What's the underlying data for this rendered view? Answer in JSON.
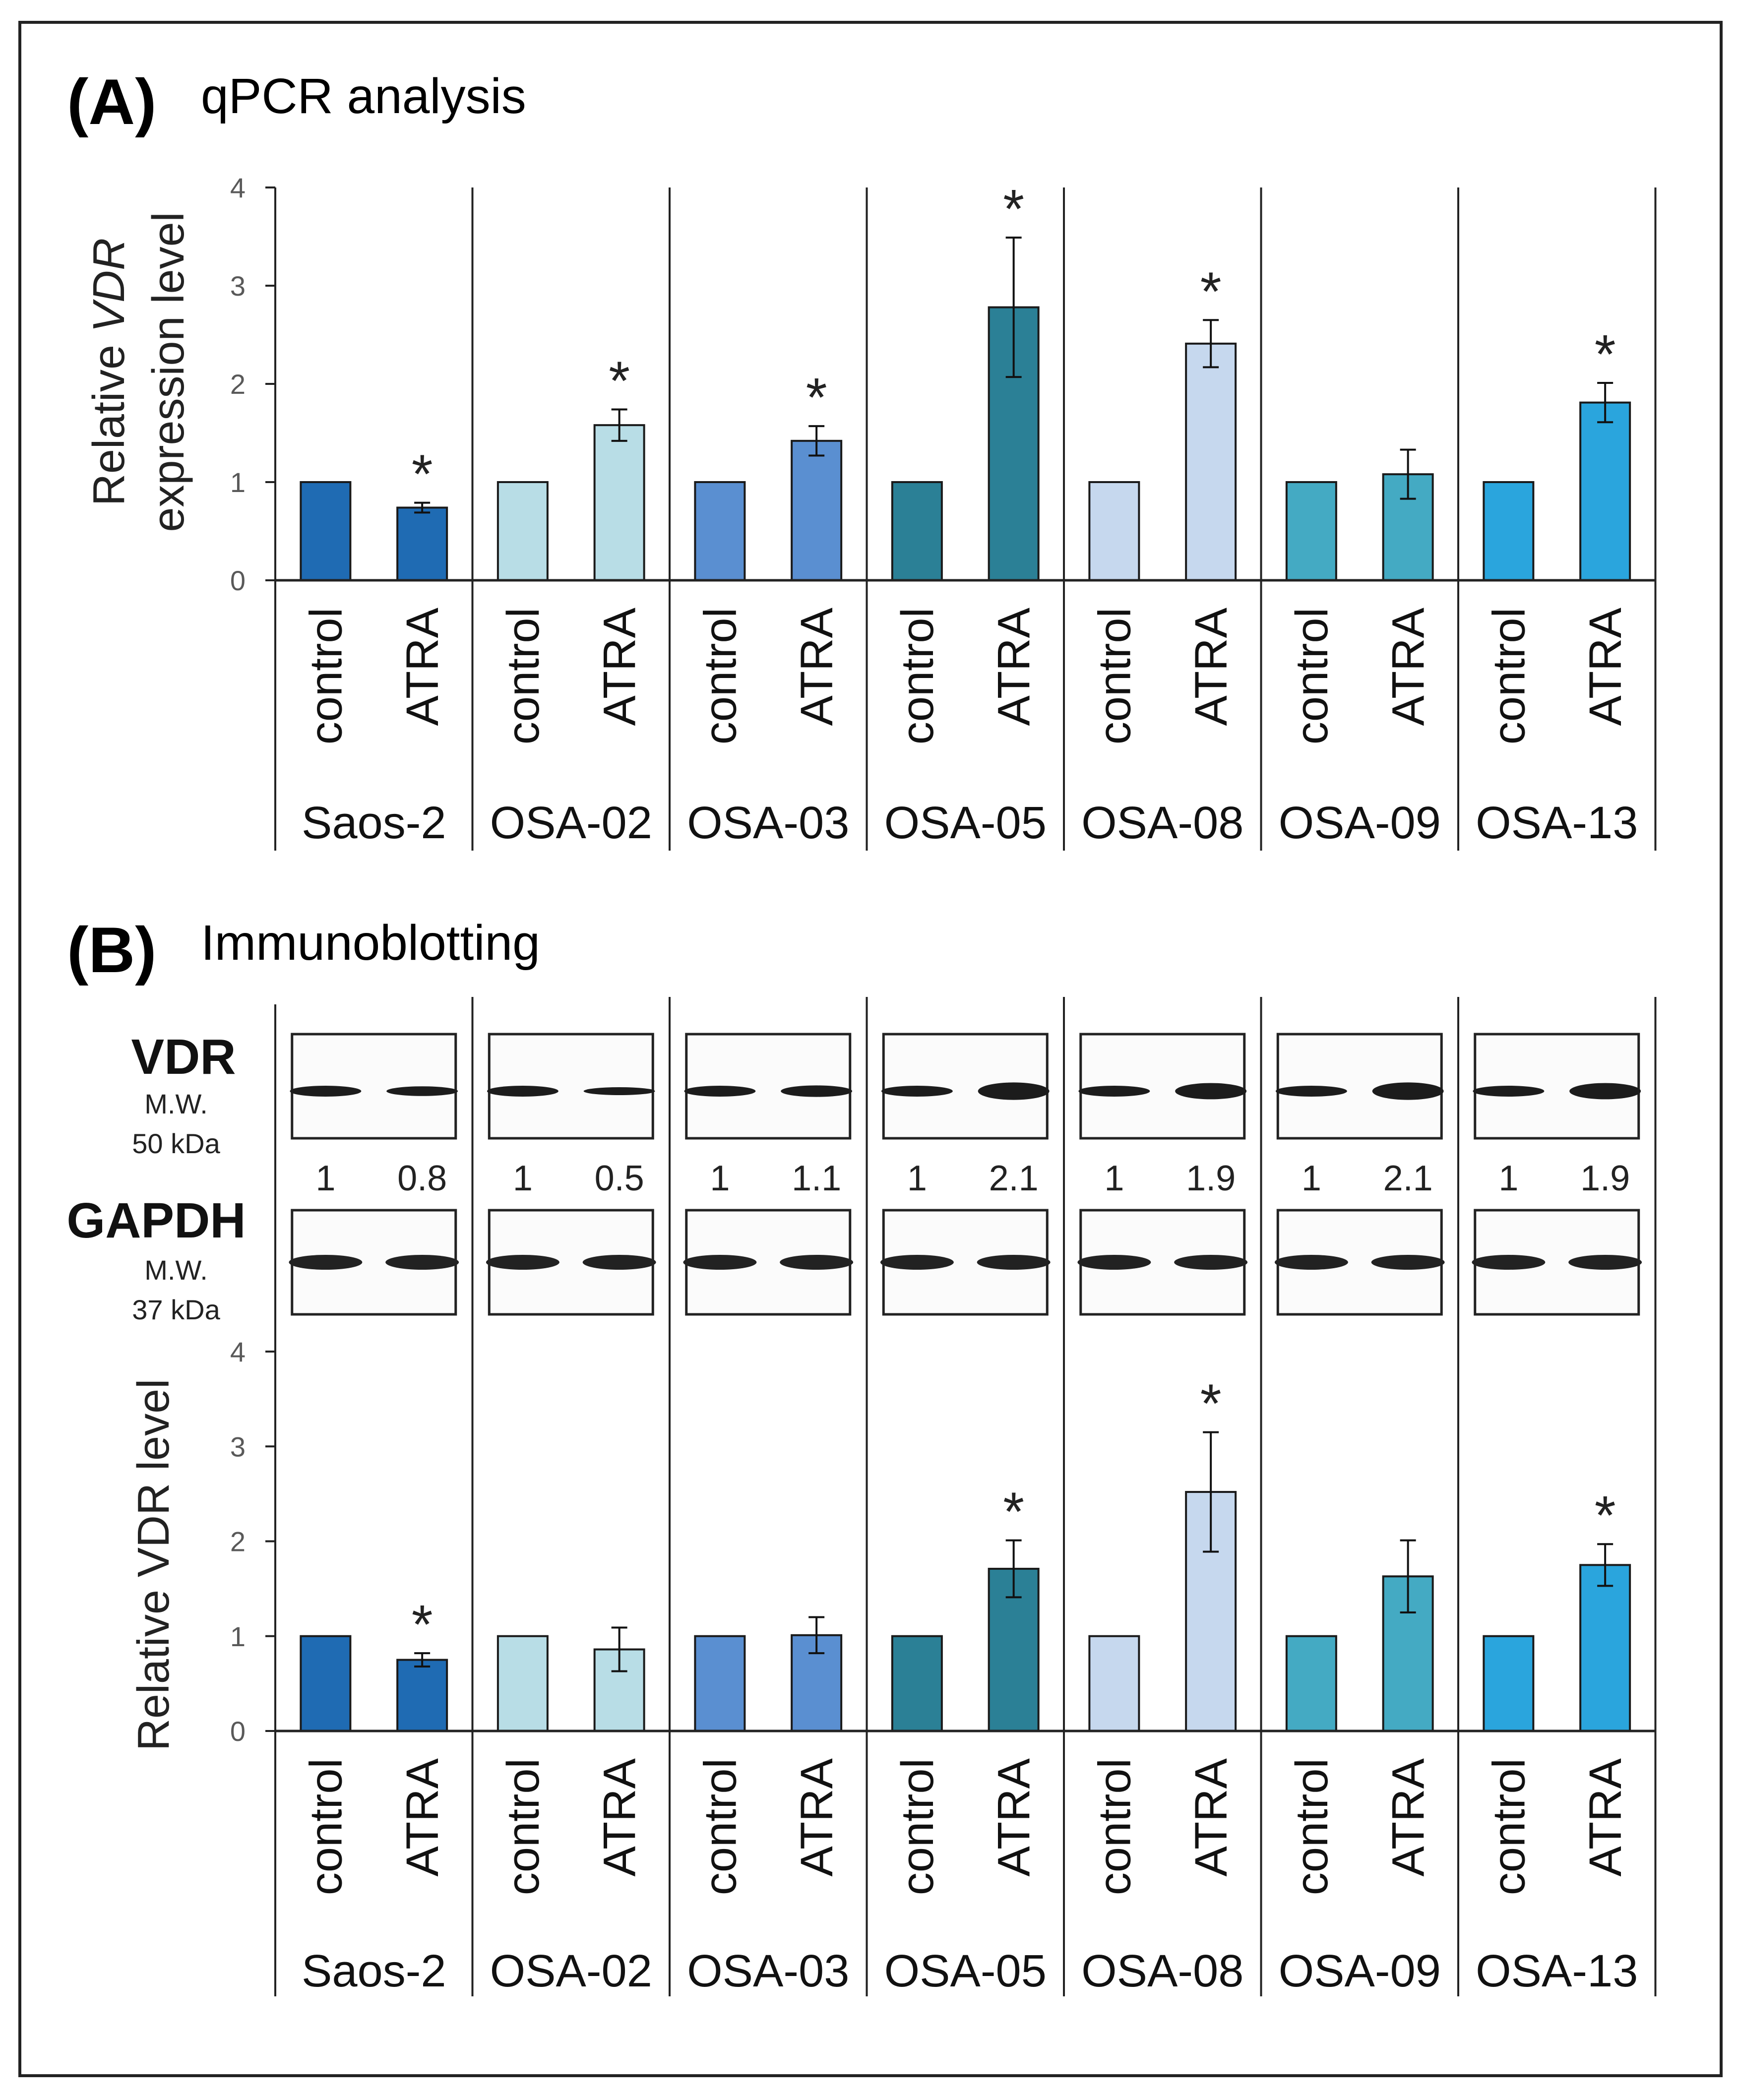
{
  "cell_lines": [
    "Saos-2",
    "OSA-02",
    "OSA-03",
    "OSA-05",
    "OSA-08",
    "OSA-09",
    "OSA-13"
  ],
  "conditions": [
    "control",
    "ATRA"
  ],
  "significance_marker": "*",
  "colors": {
    "Saos-2": "#1f6bb3",
    "OSA-02": "#b8dde6",
    "OSA-03": "#5a8fd1",
    "OSA-05": "#2b8096",
    "OSA-08": "#c6d8ee",
    "OSA-09": "#44aac3",
    "OSA-13": "#2aa5dd"
  },
  "panelA": {
    "letter": "(A)",
    "title": "qPCR analysis",
    "ylabel_prefix": "Relative ",
    "ylabel_italic": "VDR",
    "ylabel_line2": "expression level"
  },
  "panelB": {
    "letter": "(B)",
    "title": "Immunoblotting",
    "ylabel": "Relative VDR level",
    "vdr_label": "VDR",
    "vdr_mw_label": "M.W.",
    "vdr_mw": "50 kDa",
    "gapdh_label": "GAPDH",
    "gapdh_mw_label": "M.W.",
    "gapdh_mw": "37 kDa",
    "ratios": [
      [
        "1",
        "0.8"
      ],
      [
        "1",
        "0.5"
      ],
      [
        "1",
        "1.1"
      ],
      [
        "1",
        "2.1"
      ],
      [
        "1",
        "1.9"
      ],
      [
        "1",
        "2.1"
      ],
      [
        "1",
        "1.9"
      ]
    ]
  },
  "chart_data": [
    {
      "type": "bar",
      "title": "qPCR analysis",
      "ylabel": "Relative VDR expression level",
      "ylim": [
        0,
        4
      ],
      "yticks": [
        "0",
        "1",
        "2",
        "3",
        "4"
      ],
      "grid": false,
      "series": [
        {
          "name": "control",
          "values": [
            1,
            1,
            1,
            1,
            1,
            1,
            1
          ]
        },
        {
          "name": "ATRA",
          "values": [
            0.74,
            1.58,
            1.42,
            2.78,
            2.41,
            1.08,
            1.81
          ],
          "errors": [
            0.05,
            0.16,
            0.15,
            0.71,
            0.24,
            0.25,
            0.2
          ],
          "significant": [
            true,
            true,
            true,
            true,
            true,
            false,
            true
          ]
        }
      ]
    },
    {
      "type": "bar",
      "title": "Immunoblotting",
      "ylabel": "Relative VDR level",
      "ylim": [
        0,
        4
      ],
      "yticks": [
        "0",
        "1",
        "2",
        "3",
        "4"
      ],
      "grid": false,
      "series": [
        {
          "name": "control",
          "values": [
            1,
            1,
            1,
            1,
            1,
            1,
            1
          ]
        },
        {
          "name": "ATRA",
          "values": [
            0.75,
            0.86,
            1.01,
            1.71,
            2.52,
            1.63,
            1.75
          ],
          "errors": [
            0.07,
            0.23,
            0.19,
            0.3,
            0.63,
            0.38,
            0.22
          ],
          "significant": [
            true,
            false,
            false,
            true,
            true,
            false,
            true
          ]
        }
      ]
    }
  ]
}
